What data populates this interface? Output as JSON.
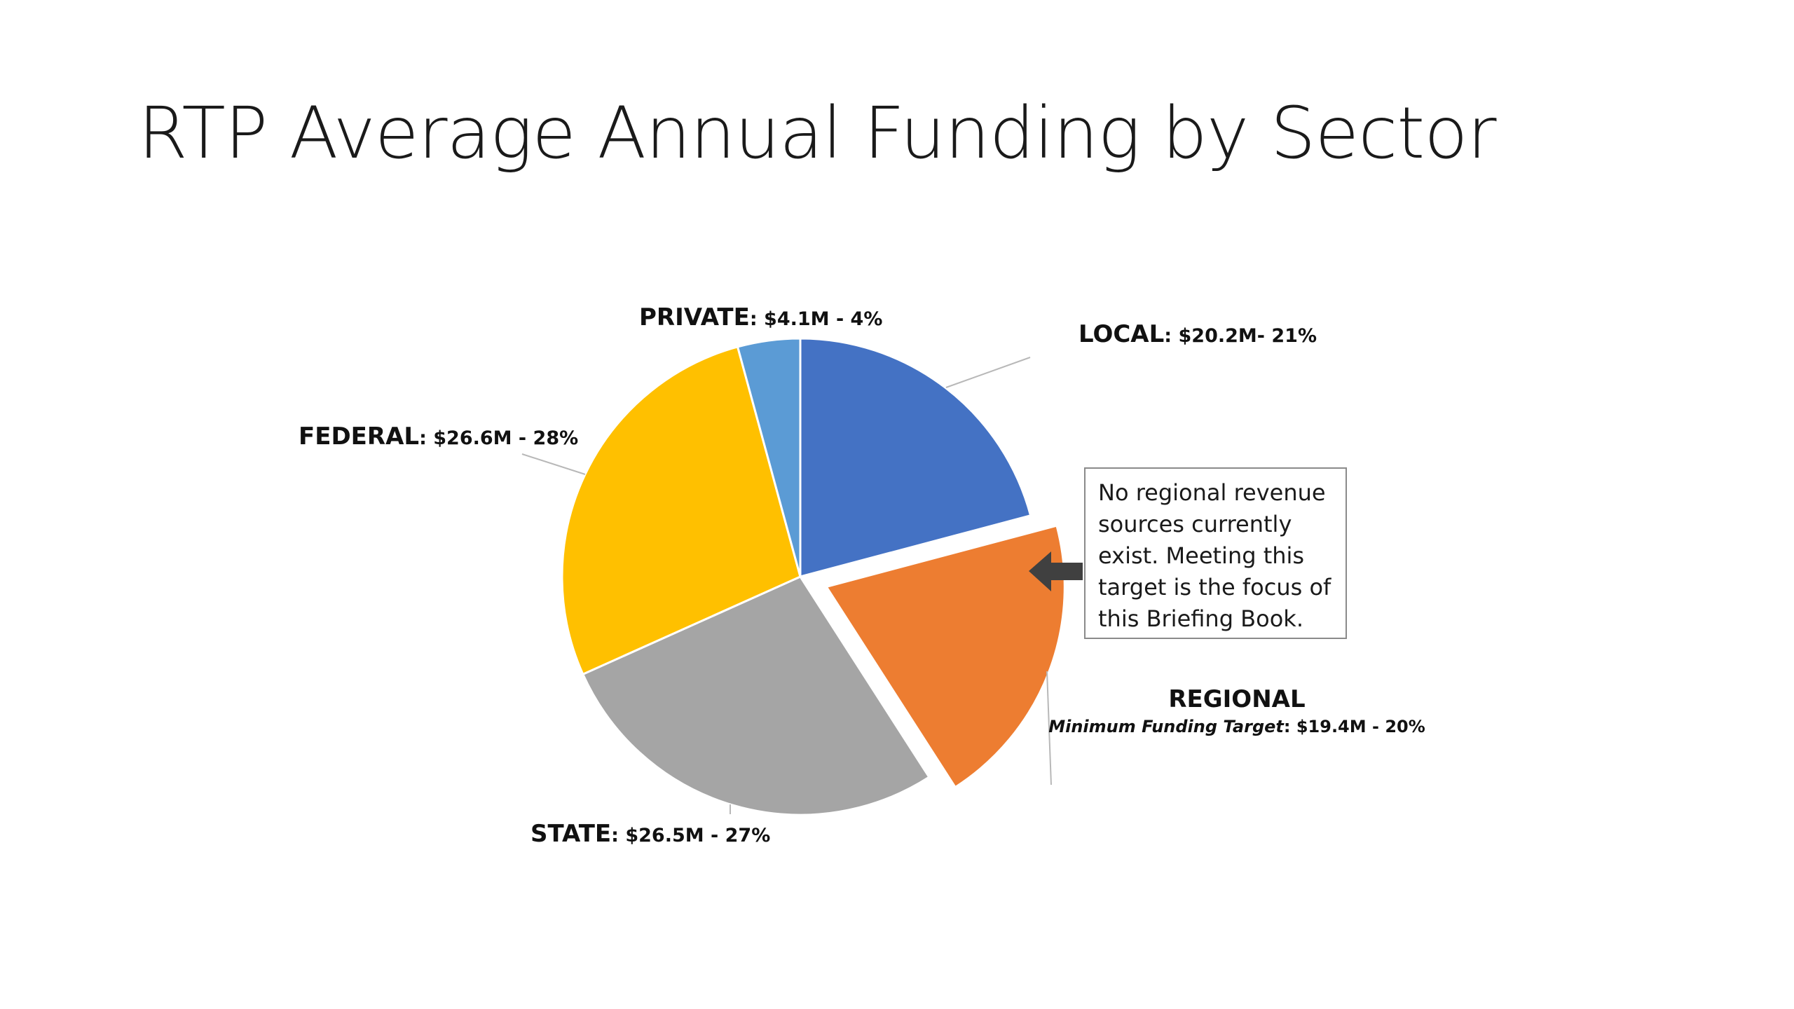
{
  "chart_data": {
    "type": "pie",
    "title": "RTP Average Annual Funding by Sector",
    "unit": "$M",
    "slices": [
      {
        "label": "LOCAL",
        "value": 20.2,
        "percent": 21,
        "value_text": ": $20.2M- 21%",
        "color": "#4472C4",
        "exploded": false
      },
      {
        "label": "REGIONAL",
        "value": 19.4,
        "percent": 20,
        "sub_label": "Minimum Funding Target",
        "value_text": ": $19.4M - 20%",
        "color": "#ED7D31",
        "exploded": true
      },
      {
        "label": "STATE",
        "value": 26.5,
        "percent": 27,
        "value_text": ": $26.5M - 27%",
        "color": "#A5A5A5",
        "exploded": false
      },
      {
        "label": "FEDERAL",
        "value": 26.6,
        "percent": 28,
        "value_text": ": $26.6M - 28%",
        "color": "#FFC000",
        "exploded": false
      },
      {
        "label": "PRIVATE",
        "value": 4.1,
        "percent": 4,
        "value_text": ": $4.1M - 4%",
        "color": "#5B9BD5",
        "exploded": false
      }
    ],
    "start_angle_deg": 0,
    "direction": "clockwise",
    "legend": "none",
    "data_labels": "outside-with-leader-lines"
  },
  "callout": {
    "text": "No regional revenue sources currently exist. Meeting this target is the focus of this Briefing Book.",
    "lines": [
      "No regional revenue",
      "sources currently",
      "exist. Meeting this",
      "target is the focus of",
      "this Briefing Book."
    ],
    "arrow_color": "#404040",
    "border_color": "#8a8a8a"
  }
}
